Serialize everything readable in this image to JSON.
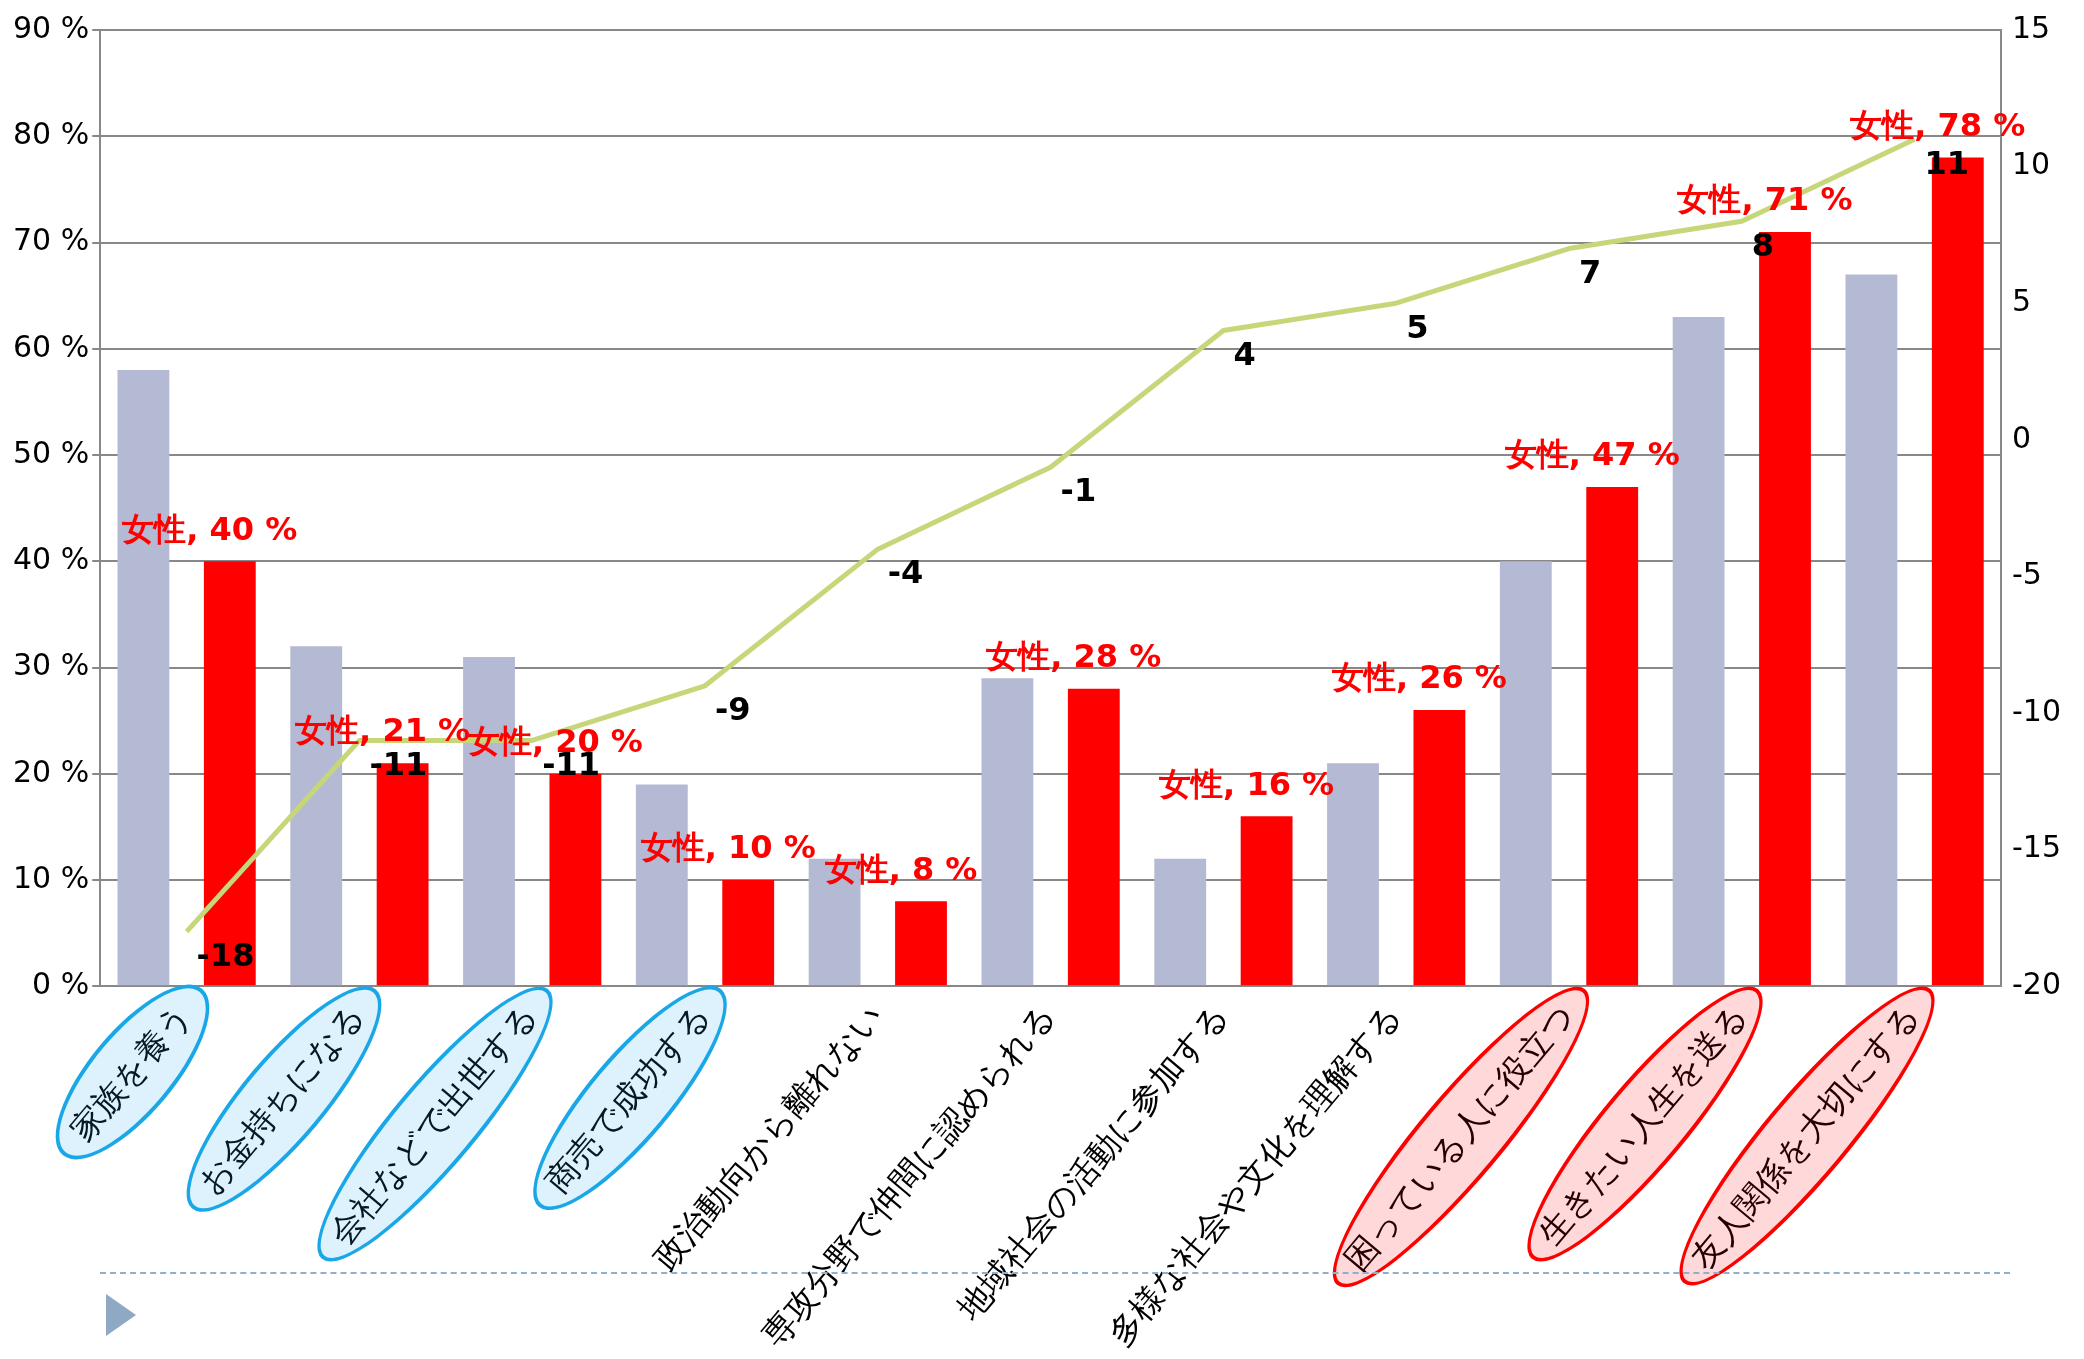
{
  "chart_data": {
    "type": "bar",
    "categories": [
      "家族を養う",
      "お金持ちになる",
      "会社などで出世する",
      "商売で成功する",
      "政治動向から離れない",
      "専攻分野で仲間に認められる",
      "地域社会の活動に参加する",
      "多様な社会や文化を理解する",
      "困っている人に役立つ",
      "生きたい人生を送る",
      "友人関係を大切にする"
    ],
    "series": [
      {
        "color": "#b4b9d4",
        "values": [
          58,
          32,
          31,
          19,
          12,
          29,
          12,
          21,
          40,
          63,
          67
        ]
      },
      {
        "color": "#ff0000",
        "values": [
          40,
          21,
          20,
          10,
          8,
          28,
          16,
          26,
          47,
          71,
          78
        ],
        "value_labels": [
          "女性, 40 %",
          "女性, 21 %",
          "女性, 20 %",
          "女性, 10 %",
          "女性, 8 %",
          "女性, 28 %",
          "女性, 16 %",
          "女性, 26 %",
          "女性, 47 %",
          "女性, 71 %",
          "女性, 78 %"
        ]
      },
      {
        "type": "line",
        "axis": "y2",
        "color": "#c8d67a",
        "values": [
          -18,
          -11,
          -11,
          -9,
          -4,
          -1,
          4,
          5,
          7,
          8,
          11
        ],
        "value_labels": [
          "-18",
          "-11",
          "-11",
          "-9",
          "-4",
          "-1",
          "4",
          "5",
          "7",
          "8",
          "11"
        ]
      }
    ],
    "ylim": [
      0,
      90
    ],
    "yticks": [
      {
        "value": 0,
        "label": "0 %"
      },
      {
        "value": 10,
        "label": "10 %"
      },
      {
        "value": 20,
        "label": "20 %"
      },
      {
        "value": 30,
        "label": "30 %"
      },
      {
        "value": 40,
        "label": "40 %"
      },
      {
        "value": 50,
        "label": "50 %"
      },
      {
        "value": 60,
        "label": "60 %"
      },
      {
        "value": 70,
        "label": "70 %"
      },
      {
        "value": 80,
        "label": "80 %"
      },
      {
        "value": 90,
        "label": "90 %"
      }
    ],
    "y2lim": [
      -20,
      15
    ],
    "y2ticks": [
      -20,
      -15,
      -10,
      -5,
      0,
      5,
      10,
      15
    ],
    "grid": "y",
    "legend": false,
    "marker": "none"
  }
}
